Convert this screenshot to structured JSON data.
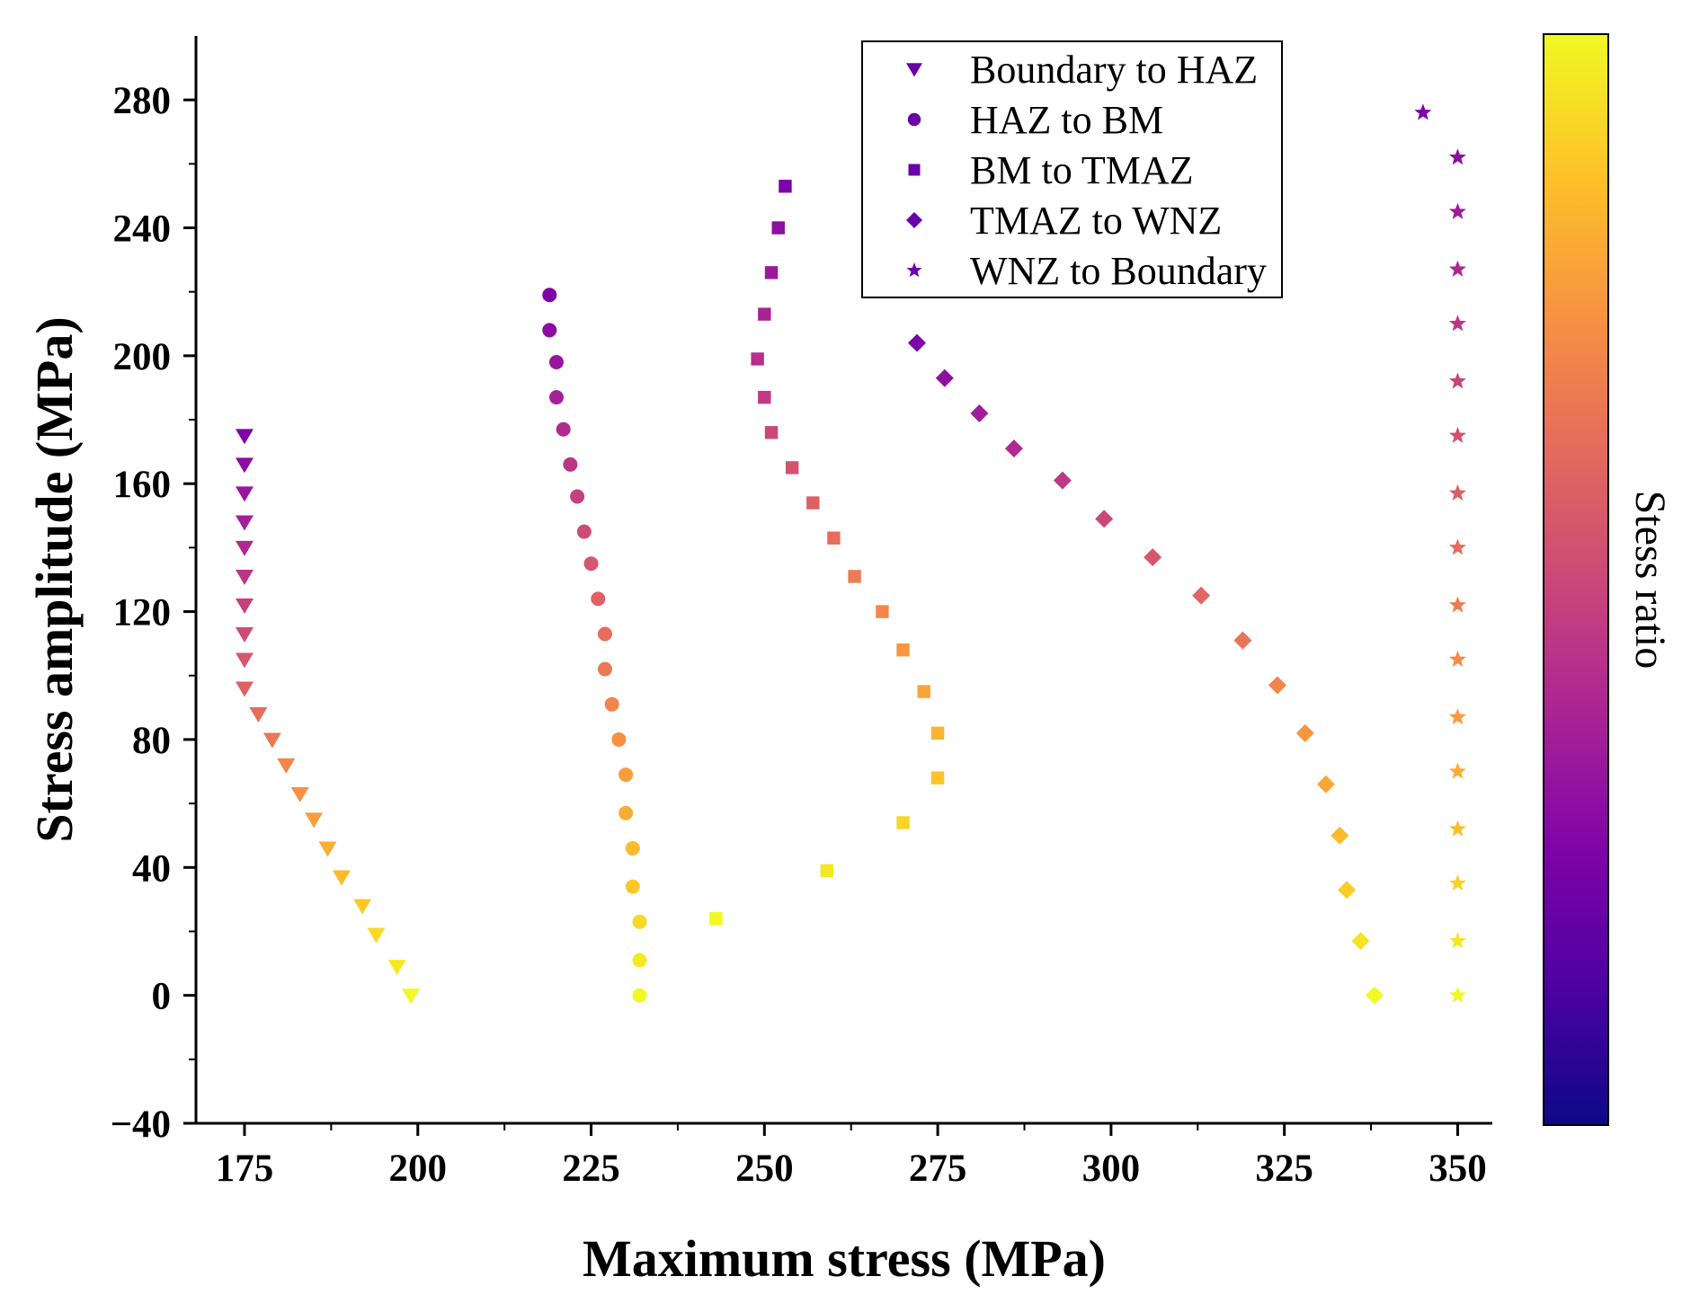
{
  "chart_data": {
    "type": "scatter",
    "title": "",
    "xlabel": "Maximum stress (MPa)",
    "ylabel": "Stress amplitude (MPa)",
    "xlim": [
      168,
      355
    ],
    "ylim": [
      -40,
      300
    ],
    "xticks": [
      175,
      200,
      225,
      250,
      275,
      300,
      325,
      350
    ],
    "yticks": [
      -40,
      0,
      40,
      80,
      120,
      160,
      200,
      240,
      280
    ],
    "xtick_labels": [
      "175",
      "200",
      "225",
      "250",
      "275",
      "300",
      "325",
      "350"
    ],
    "ytick_labels": [
      "−40",
      "0",
      "40",
      "80",
      "120",
      "160",
      "200",
      "240",
      "280"
    ],
    "colorbar": {
      "label": "Stess ratio",
      "colormap": "plasma"
    },
    "legend_position": "top-right",
    "series": [
      {
        "name": "Boundary to HAZ",
        "marker": "triangle-down",
        "x": [
          175,
          175,
          175,
          175,
          175,
          175,
          175,
          175,
          175,
          175,
          177,
          179,
          181,
          183,
          185,
          187,
          189,
          192,
          194,
          197,
          199
        ],
        "y": [
          175,
          166,
          157,
          148,
          140,
          131,
          122,
          113,
          105,
          96,
          88,
          80,
          72,
          63,
          55,
          46,
          37,
          28,
          19,
          9,
          0
        ]
      },
      {
        "name": "HAZ to BM",
        "marker": "circle",
        "x": [
          219,
          219,
          220,
          220,
          221,
          222,
          223,
          224,
          225,
          226,
          227,
          227,
          228,
          229,
          230,
          230,
          231,
          231,
          232,
          232,
          232
        ],
        "y": [
          219,
          208,
          198,
          187,
          177,
          166,
          156,
          145,
          135,
          124,
          113,
          102,
          91,
          80,
          69,
          57,
          46,
          34,
          23,
          11,
          0
        ]
      },
      {
        "name": "BM to TMAZ",
        "marker": "square",
        "x": [
          253,
          252,
          251,
          250,
          249,
          250,
          251,
          254,
          257,
          260,
          263,
          267,
          270,
          273,
          275,
          275,
          270,
          259,
          243
        ],
        "y": [
          253,
          240,
          226,
          213,
          199,
          187,
          176,
          165,
          154,
          143,
          131,
          120,
          108,
          95,
          82,
          68,
          54,
          39,
          24
        ]
      },
      {
        "name": "TMAZ to WNZ",
        "marker": "diamond",
        "x": [
          272,
          276,
          281,
          286,
          293,
          299,
          306,
          313,
          319,
          324,
          328,
          331,
          333,
          334,
          336,
          338
        ],
        "y": [
          204,
          193,
          182,
          171,
          161,
          149,
          137,
          125,
          111,
          97,
          82,
          66,
          50,
          33,
          17,
          0
        ]
      },
      {
        "name": "WNZ to Boundary",
        "marker": "star",
        "x": [
          345,
          350,
          350,
          350,
          350,
          350,
          350,
          350,
          350,
          350,
          350,
          350,
          350,
          350,
          350,
          350,
          350
        ],
        "y": [
          276,
          262,
          245,
          227,
          210,
          192,
          175,
          157,
          140,
          122,
          105,
          87,
          70,
          52,
          35,
          17,
          0
        ]
      }
    ]
  },
  "colors": {
    "axis": "#000000",
    "legend_marker": "#6a00a8",
    "background": "#ffffff"
  }
}
